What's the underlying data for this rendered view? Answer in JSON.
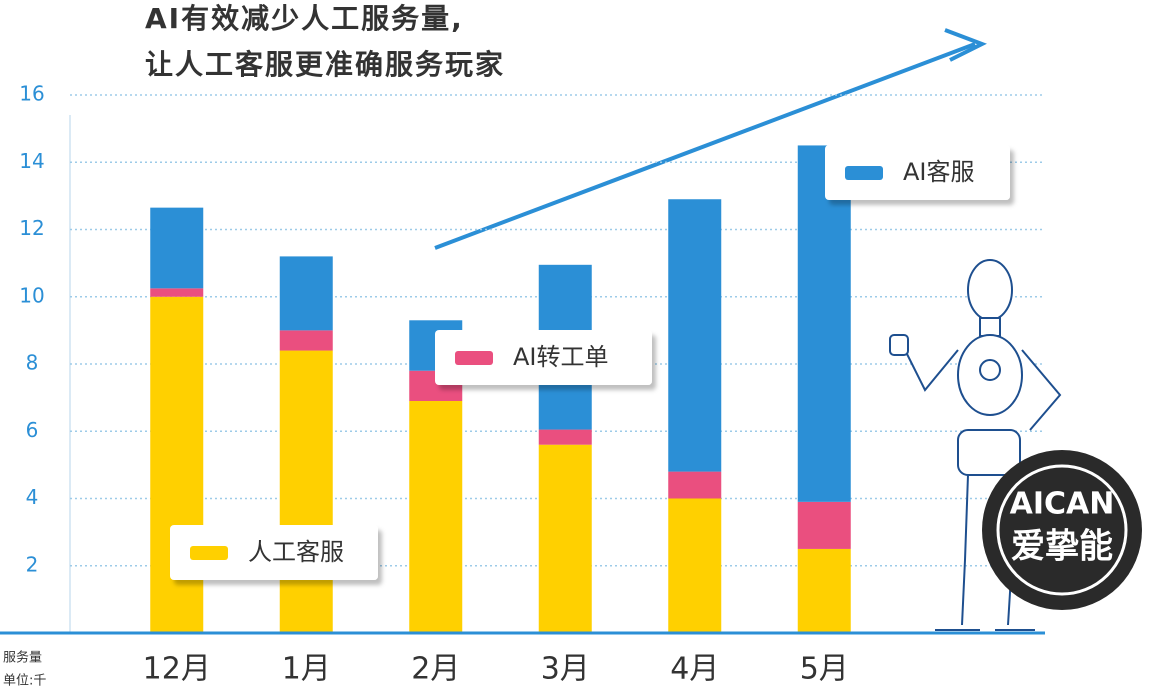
{
  "chart_data": {
    "type": "stacked_bar",
    "title": [
      "AI有效减少人工服务量,",
      "让人工客服更准确服务玩家"
    ],
    "y_axis_label": [
      "服务量",
      "单位:千"
    ],
    "categories": [
      "12月",
      "1月",
      "2月",
      "3月",
      "4月",
      "5月"
    ],
    "series": [
      {
        "name": "人工客服",
        "color": "#ffd000",
        "values": [
          10.0,
          8.4,
          6.9,
          5.6,
          4.0,
          2.5
        ]
      },
      {
        "name": "AI转工单",
        "color": "#ea4f7f",
        "values": [
          0.25,
          0.6,
          0.9,
          0.45,
          0.8,
          1.4
        ]
      },
      {
        "name": "AI客服",
        "color": "#2b8fd6",
        "values": [
          2.4,
          2.2,
          1.5,
          4.9,
          8.1,
          10.6
        ]
      }
    ],
    "ylim": [
      0,
      16
    ],
    "yticks": [
      2,
      4,
      6,
      8,
      10,
      12,
      14,
      16
    ],
    "grid": true,
    "annotations": [
      "AICAN",
      "爱挚能"
    ]
  }
}
